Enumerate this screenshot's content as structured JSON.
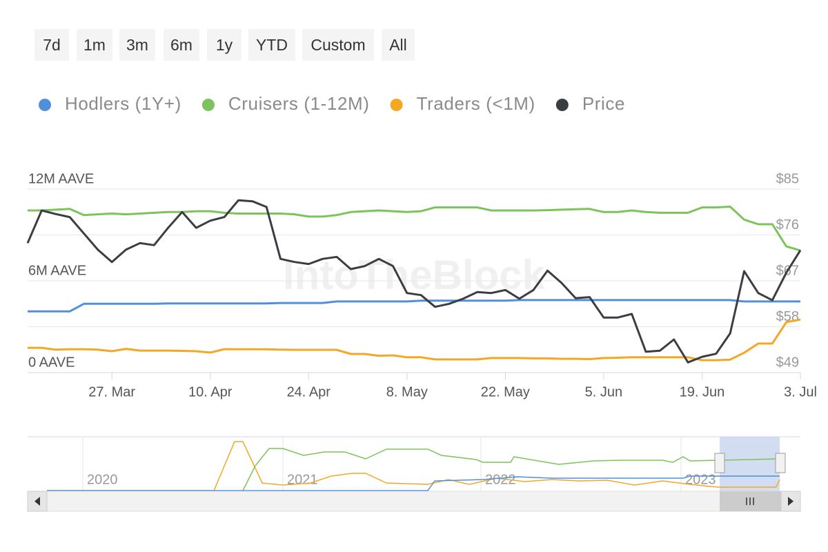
{
  "range_buttons": [
    "7d",
    "1m",
    "3m",
    "6m",
    "1y",
    "YTD",
    "Custom",
    "All"
  ],
  "watermark": "IntoTheBlock",
  "navigator": {
    "years": [
      "2020",
      "2021",
      "2022",
      "2023"
    ]
  },
  "chart_data": {
    "type": "line",
    "legend_position": "top-left",
    "grid": true,
    "categories": [
      null,
      null,
      null,
      null,
      null,
      null,
      "27. Mar",
      null,
      null,
      null,
      null,
      null,
      null,
      "10. Apr",
      null,
      null,
      null,
      null,
      null,
      null,
      "24. Apr",
      null,
      null,
      null,
      null,
      null,
      null,
      "8. May",
      null,
      null,
      null,
      null,
      null,
      null,
      "22. May",
      null,
      null,
      null,
      null,
      null,
      null,
      "5. Jun",
      null,
      null,
      null,
      null,
      null,
      null,
      "19. Jun",
      null,
      null,
      null,
      null,
      null,
      null,
      "3. Jul"
    ],
    "ylim": [
      0,
      12000000
    ],
    "yticks": [
      {
        "value": 0,
        "label": "0 AAVE"
      },
      {
        "value": 6000000,
        "label": "6M AAVE"
      },
      {
        "value": 12000000,
        "label": "12M AAVE"
      }
    ],
    "y2lim": [
      49,
      85
    ],
    "y2ticks": [
      {
        "value": 49,
        "label": "$49"
      },
      {
        "value": 58,
        "label": "$58"
      },
      {
        "value": 67,
        "label": "$67"
      },
      {
        "value": 76,
        "label": "$76"
      },
      {
        "value": 85,
        "label": "$85"
      }
    ],
    "series": [
      {
        "name": "Hodlers (1Y+)",
        "color": "#4f8fdc",
        "values": [
          4000000,
          4000000,
          4000000,
          4000000,
          4500000,
          4500000,
          4500000,
          4500000,
          4500000,
          4500000,
          4520000,
          4520000,
          4520000,
          4520000,
          4520000,
          4520000,
          4520000,
          4520000,
          4550000,
          4550000,
          4550000,
          4550000,
          4650000,
          4650000,
          4650000,
          4650000,
          4650000,
          4650000,
          4700000,
          4700000,
          4700000,
          4700000,
          4700000,
          4700000,
          4700000,
          4740000,
          4740000,
          4740000,
          4740000,
          4740000,
          4740000,
          4740000,
          4740000,
          4740000,
          4740000,
          4740000,
          4740000,
          4740000,
          4740000,
          4740000,
          4740000,
          4650000,
          4650000,
          4650000,
          4650000,
          4650000
        ]
      },
      {
        "name": "Cruisers (1-12M)",
        "color": "#7cc35b",
        "values": [
          10600000,
          10600000,
          10650000,
          10700000,
          10300000,
          10350000,
          10400000,
          10350000,
          10400000,
          10450000,
          10500000,
          10500000,
          10550000,
          10550000,
          10450000,
          10400000,
          10400000,
          10400000,
          10400000,
          10350000,
          10200000,
          10200000,
          10300000,
          10500000,
          10550000,
          10600000,
          10550000,
          10500000,
          10550000,
          10800000,
          10800000,
          10800000,
          10800000,
          10600000,
          10600000,
          10600000,
          10600000,
          10620000,
          10650000,
          10680000,
          10700000,
          10500000,
          10500000,
          10600000,
          10500000,
          10450000,
          10450000,
          10450000,
          10800000,
          10800000,
          10850000,
          10000000,
          9700000,
          9700000,
          8250000,
          7980000
        ]
      },
      {
        "name": "Traders (<1M)",
        "color": "#f5a623",
        "values": [
          1620000,
          1620000,
          1500000,
          1530000,
          1530000,
          1500000,
          1400000,
          1550000,
          1440000,
          1440000,
          1440000,
          1420000,
          1400000,
          1310000,
          1530000,
          1530000,
          1530000,
          1520000,
          1500000,
          1490000,
          1490000,
          1490000,
          1490000,
          1220000,
          1220000,
          1100000,
          1130000,
          1000000,
          1000000,
          860000,
          860000,
          860000,
          860000,
          950000,
          950000,
          950000,
          930000,
          930000,
          900000,
          900000,
          880000,
          950000,
          970000,
          1000000,
          1000000,
          1000000,
          1000000,
          1000000,
          810000,
          810000,
          850000,
          1300000,
          1900000,
          1900000,
          3300000,
          3470000
        ]
      },
      {
        "name": "Price",
        "color": "#3a3d42",
        "axis": "y2",
        "values": [
          74.4,
          80.8,
          80.1,
          79.5,
          76.3,
          73.1,
          70.7,
          73.1,
          74.4,
          74.0,
          77.4,
          80.5,
          77.4,
          78.8,
          79.5,
          82.8,
          82.6,
          81.5,
          71.3,
          70.7,
          70.3,
          71.3,
          71.7,
          69.3,
          69.9,
          71.3,
          69.9,
          64.6,
          64.2,
          61.9,
          62.5,
          63.5,
          64.8,
          64.6,
          65.2,
          63.5,
          65.2,
          69.0,
          66.6,
          63.6,
          63.8,
          59.8,
          59.8,
          60.5,
          53.1,
          53.3,
          55.5,
          51.0,
          52.1,
          52.7,
          56.7,
          68.9,
          64.6,
          63.2,
          68.6,
          73.0
        ]
      }
    ]
  }
}
